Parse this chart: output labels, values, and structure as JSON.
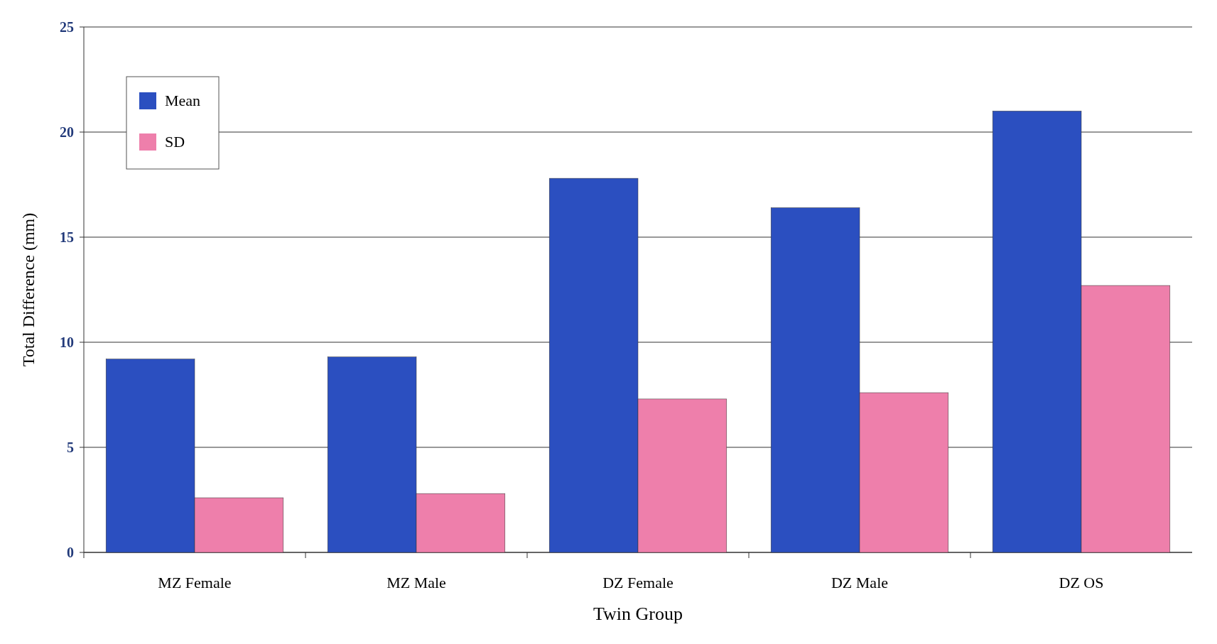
{
  "chart_data": {
    "type": "bar",
    "xlabel": "Twin Group",
    "ylabel": "Total Difference (mm)",
    "categories": [
      "MZ Female",
      "MZ Male",
      "DZ Female",
      "DZ Male",
      "DZ OS"
    ],
    "series": [
      {
        "name": "Mean",
        "color": "#2b4fc0",
        "values": [
          9.2,
          9.3,
          17.8,
          16.4,
          21.0
        ]
      },
      {
        "name": "SD",
        "color": "#ee7fab",
        "values": [
          2.6,
          2.8,
          7.3,
          7.6,
          12.7
        ]
      }
    ],
    "ylim": [
      0,
      25
    ],
    "yticks": [
      0,
      5,
      10,
      15,
      20,
      25
    ],
    "grid": "y",
    "legend": "top left"
  }
}
